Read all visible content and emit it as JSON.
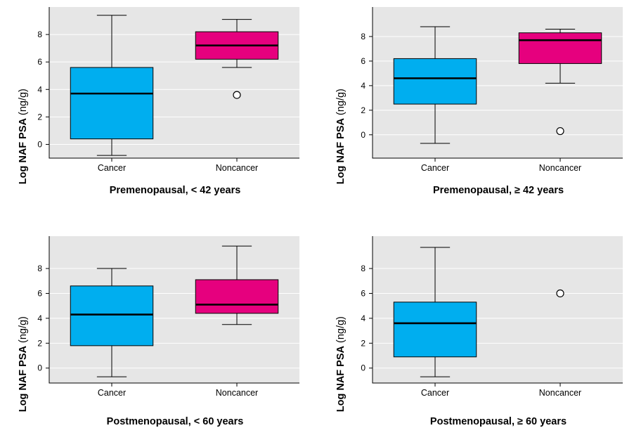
{
  "chart_data": [
    {
      "type": "box",
      "title": "Premenopausal, < 42 years",
      "ylabel_bold": "Log NAF PSA",
      "ylabel_unit": "(ng/g)",
      "ylim": [
        -1,
        10
      ],
      "yticks": [
        0,
        2,
        4,
        6,
        8
      ],
      "grid": true,
      "categories": [
        "Cancer",
        "Noncancer"
      ],
      "colors": [
        "#00aeef",
        "#e6007e"
      ],
      "boxes": [
        {
          "category": "Cancer",
          "min": -0.8,
          "q1": 0.4,
          "median": 3.7,
          "q3": 5.6,
          "max": 9.4,
          "outliers": []
        },
        {
          "category": "Noncancer",
          "min": 5.6,
          "q1": 6.2,
          "median": 7.2,
          "q3": 8.2,
          "max": 9.1,
          "outliers": [
            3.6
          ]
        }
      ]
    },
    {
      "type": "box",
      "title": "Premenopausal, ≥ 42 years",
      "ylabel_bold": "Log NAF PSA",
      "ylabel_unit": "(ng/g)",
      "ylim": [
        -1.9,
        10.4
      ],
      "yticks": [
        0,
        2,
        4,
        6,
        8
      ],
      "grid": true,
      "categories": [
        "Cancer",
        "Noncancer"
      ],
      "colors": [
        "#00aeef",
        "#e6007e"
      ],
      "boxes": [
        {
          "category": "Cancer",
          "min": -0.7,
          "q1": 2.5,
          "median": 4.6,
          "q3": 6.2,
          "max": 8.8,
          "outliers": []
        },
        {
          "category": "Noncancer",
          "min": 4.2,
          "q1": 5.8,
          "median": 7.7,
          "q3": 8.3,
          "max": 8.6,
          "outliers": [
            0.3
          ]
        }
      ]
    },
    {
      "type": "box",
      "title": "Postmenopausal, < 60 years",
      "ylabel_bold": "Log NAF PSA",
      "ylabel_unit": "(ng/g)",
      "ylim": [
        -1.2,
        10.6
      ],
      "yticks": [
        0,
        2,
        4,
        6,
        8
      ],
      "grid": true,
      "categories": [
        "Cancer",
        "Noncancer"
      ],
      "colors": [
        "#00aeef",
        "#e6007e"
      ],
      "boxes": [
        {
          "category": "Cancer",
          "min": -0.7,
          "q1": 1.8,
          "median": 4.3,
          "q3": 6.6,
          "max": 8.0,
          "outliers": []
        },
        {
          "category": "Noncancer",
          "min": 3.5,
          "q1": 4.4,
          "median": 5.1,
          "q3": 7.1,
          "max": 9.8,
          "outliers": []
        }
      ]
    },
    {
      "type": "box",
      "title": "Postmenopausal, ≥ 60 years",
      "ylabel_bold": "Log NAF PSA",
      "ylabel_unit": "(ng/g)",
      "ylim": [
        -1.2,
        10.6
      ],
      "yticks": [
        0,
        2,
        4,
        6,
        8
      ],
      "grid": true,
      "categories": [
        "Cancer",
        "Noncancer"
      ],
      "colors": [
        "#00aeef",
        "#e6007e"
      ],
      "boxes": [
        {
          "category": "Cancer",
          "min": -0.7,
          "q1": 0.9,
          "median": 3.6,
          "q3": 5.3,
          "max": 9.7,
          "outliers": []
        },
        {
          "category": "Noncancer",
          "min": null,
          "q1": null,
          "median": null,
          "q3": null,
          "max": null,
          "outliers": [
            6.0
          ]
        }
      ]
    }
  ]
}
